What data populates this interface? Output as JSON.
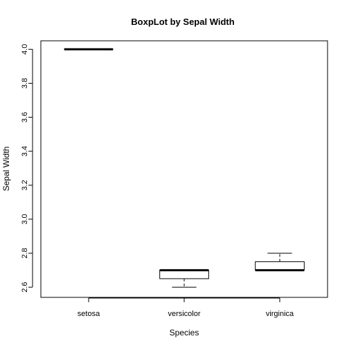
{
  "chart_data": {
    "type": "box",
    "title": "BoxpLot by Sepal Width",
    "xlabel": "Species",
    "ylabel": "Sepal Width",
    "categories": [
      "setosa",
      "versicolor",
      "virginica"
    ],
    "ylim": [
      2.54,
      4.05
    ],
    "yticks": [
      2.6,
      2.8,
      3.0,
      3.2,
      3.4,
      3.6,
      3.8,
      4.0
    ],
    "ytick_labels": [
      "2.6",
      "2.8",
      "3.0",
      "3.2",
      "3.4",
      "3.6",
      "3.8",
      "4.0"
    ],
    "boxes": [
      {
        "category": "setosa",
        "min": 4.0,
        "q1": 4.0,
        "median": 4.0,
        "q3": 4.0,
        "max": 4.0
      },
      {
        "category": "versicolor",
        "min": 2.6,
        "q1": 2.65,
        "median": 2.7,
        "q3": 2.7,
        "max": 2.7
      },
      {
        "category": "virginica",
        "min": 2.7,
        "q1": 2.7,
        "median": 2.7,
        "q3": 2.75,
        "max": 2.8
      }
    ],
    "grid": false,
    "colors": {
      "line": "#000000",
      "box_fill": "#ffffff",
      "background": "#ffffff"
    }
  }
}
